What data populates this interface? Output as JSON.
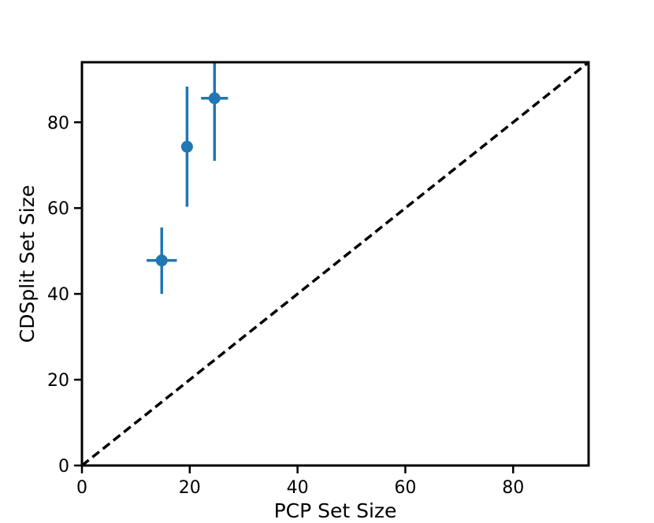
{
  "chart_data": {
    "type": "scatter",
    "title": "",
    "xlabel": "PCP Set Size",
    "ylabel": "CDSplit Set Size",
    "xlim": [
      0,
      94
    ],
    "ylim": [
      0,
      94
    ],
    "xticks": [
      0,
      20,
      40,
      60,
      80
    ],
    "yticks": [
      0,
      20,
      40,
      60,
      80
    ],
    "grid": false,
    "legend": "none",
    "color": "#1f77b4",
    "reference_line": {
      "style": "dashed",
      "color": "#000000",
      "from": [
        0,
        0
      ],
      "to": [
        94,
        94
      ]
    },
    "points": [
      {
        "x": 14.8,
        "y": 47.8,
        "xerr": [
          12.0,
          17.6
        ],
        "yerr": [
          40.0,
          55.5
        ]
      },
      {
        "x": 19.5,
        "y": 74.3,
        "xerr": [
          19.5,
          19.5
        ],
        "yerr": [
          60.3,
          88.3
        ]
      },
      {
        "x": 24.6,
        "y": 85.6,
        "xerr": [
          22.1,
          27.1
        ],
        "yerr": [
          71.0,
          94.0
        ]
      }
    ]
  }
}
